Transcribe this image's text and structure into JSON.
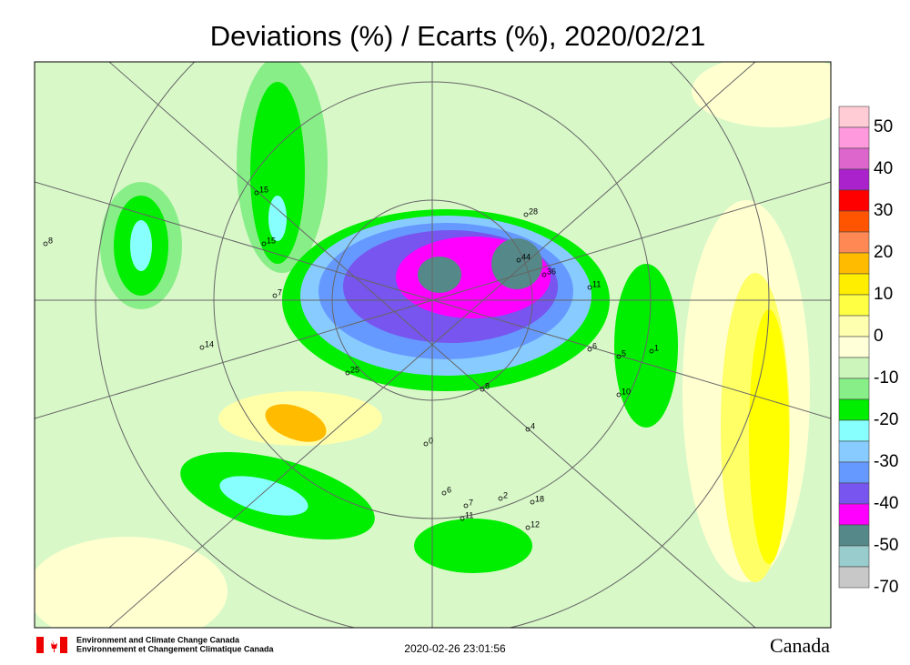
{
  "title": "Deviations (%) / Ecarts (%), 2020/02/21",
  "colorbar": {
    "labels": [
      50,
      40,
      30,
      20,
      10,
      0,
      -10,
      -20,
      -30,
      -40,
      -50,
      -70
    ],
    "colors": [
      "#ffccd5",
      "#ff99dd",
      "#dd66cc",
      "#aa22cc",
      "#ff0000",
      "#ff5500",
      "#ff8855",
      "#ffbb00",
      "#ffee00",
      "#ffff44",
      "#ffffb0",
      "#ffffd8",
      "#ccf5bb",
      "#88ee88",
      "#00ee00",
      "#88ffff",
      "#88ccff",
      "#6699ff",
      "#7755ee",
      "#ff00ff",
      "#558888",
      "#99cccc",
      "#c8c8c8"
    ]
  },
  "stations": [
    "8",
    "15",
    "15",
    "7",
    "14",
    "25",
    "28",
    "44",
    "36",
    "11",
    "5",
    "6",
    "1",
    "10",
    "4",
    "0",
    "2",
    "7",
    "6",
    "11",
    "18",
    "12",
    "8"
  ],
  "footer": {
    "org_en": "Environment and Climate Change Canada",
    "org_fr": "Environnement et Changement Climatique Canada",
    "timestamp": "2020-02-26 23:01:56",
    "wordmark": "Canada"
  }
}
